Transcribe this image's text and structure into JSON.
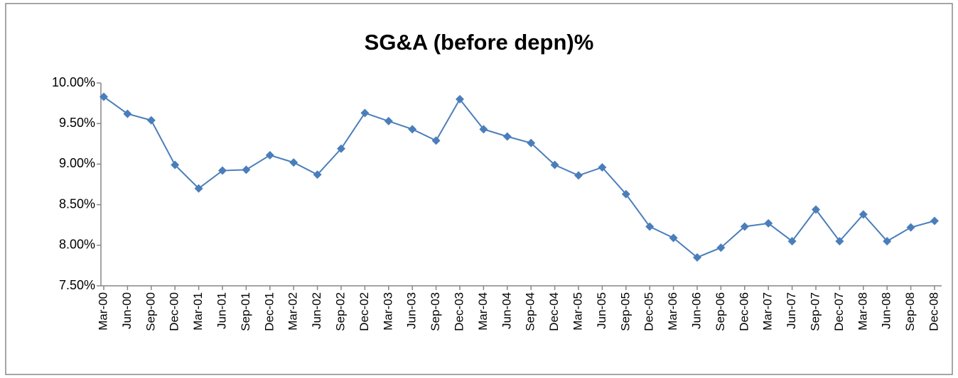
{
  "chart_data": {
    "type": "line",
    "title": "SG&A (before depn)%",
    "categories": [
      "Mar-00",
      "Jun-00",
      "Sep-00",
      "Dec-00",
      "Mar-01",
      "Jun-01",
      "Sep-01",
      "Dec-01",
      "Mar-02",
      "Jun-02",
      "Sep-02",
      "Dec-02",
      "Mar-03",
      "Jun-03",
      "Sep-03",
      "Dec-03",
      "Mar-04",
      "Jun-04",
      "Sep-04",
      "Dec-04",
      "Mar-05",
      "Jun-05",
      "Sep-05",
      "Dec-05",
      "Mar-06",
      "Jun-06",
      "Sep-06",
      "Dec-06",
      "Mar-07",
      "Jun-07",
      "Sep-07",
      "Dec-07",
      "Mar-08",
      "Jun-08",
      "Sep-08",
      "Dec-08"
    ],
    "series": [
      {
        "name": "SG&A (before depn)%",
        "color": "#4a7ebb",
        "values": [
          9.83,
          9.62,
          9.54,
          8.99,
          8.7,
          8.92,
          8.93,
          9.11,
          9.02,
          8.87,
          9.19,
          9.63,
          9.53,
          9.43,
          9.29,
          9.8,
          9.43,
          9.34,
          9.26,
          8.99,
          8.86,
          8.96,
          8.63,
          8.23,
          8.09,
          7.85,
          7.97,
          8.23,
          8.27,
          8.05,
          8.44,
          8.05,
          8.38,
          8.05,
          8.22,
          8.3
        ]
      }
    ],
    "ylim": [
      7.5,
      10
    ],
    "yticks": [
      {
        "value": 7.5,
        "label": "7.50%"
      },
      {
        "value": 8,
        "label": "8.00%"
      },
      {
        "value": 8.5,
        "label": "8.50%"
      },
      {
        "value": 9,
        "label": "9.00%"
      },
      {
        "value": 9.5,
        "label": "9.50%"
      },
      {
        "value": 10,
        "label": "10.00%"
      }
    ],
    "grid": false
  }
}
